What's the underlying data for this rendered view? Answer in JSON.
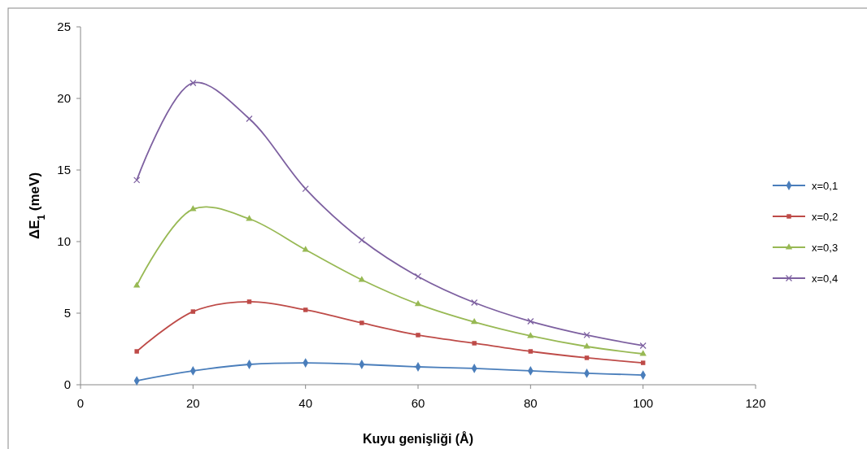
{
  "chart_data": {
    "type": "line",
    "xlabel": "Kuyu genişliği  (Å)",
    "ylabel": "ΔE$_{1}$ (meV)",
    "x": [
      10,
      20,
      30,
      40,
      50,
      60,
      70,
      80,
      90,
      100
    ],
    "xlim": [
      0,
      120
    ],
    "xticks": [
      0,
      20,
      40,
      60,
      80,
      100,
      120
    ],
    "ylim": [
      0,
      25
    ],
    "yticks": [
      0,
      5,
      10,
      15,
      20,
      25
    ],
    "grid": false,
    "legend": "right",
    "series": [
      {
        "name": "x=0,1",
        "color": "#4a7ebb",
        "marker": "diamond",
        "values": [
          0.28,
          0.97,
          1.42,
          1.53,
          1.42,
          1.25,
          1.14,
          0.97,
          0.8,
          0.68
        ]
      },
      {
        "name": "x=0,2",
        "color": "#be4b48",
        "marker": "square",
        "values": [
          2.33,
          5.11,
          5.8,
          5.23,
          4.32,
          3.47,
          2.9,
          2.33,
          1.88,
          1.53
        ]
      },
      {
        "name": "x=0,3",
        "color": "#98b954",
        "marker": "triangle",
        "values": [
          6.93,
          12.27,
          11.59,
          9.43,
          7.33,
          5.63,
          4.38,
          3.41,
          2.67,
          2.16
        ]
      },
      {
        "name": "x=0,4",
        "color": "#7d60a0",
        "marker": "cross",
        "values": [
          14.3,
          21.08,
          18.58,
          13.69,
          10.11,
          7.56,
          5.74,
          4.43,
          3.47,
          2.73
        ]
      }
    ]
  }
}
